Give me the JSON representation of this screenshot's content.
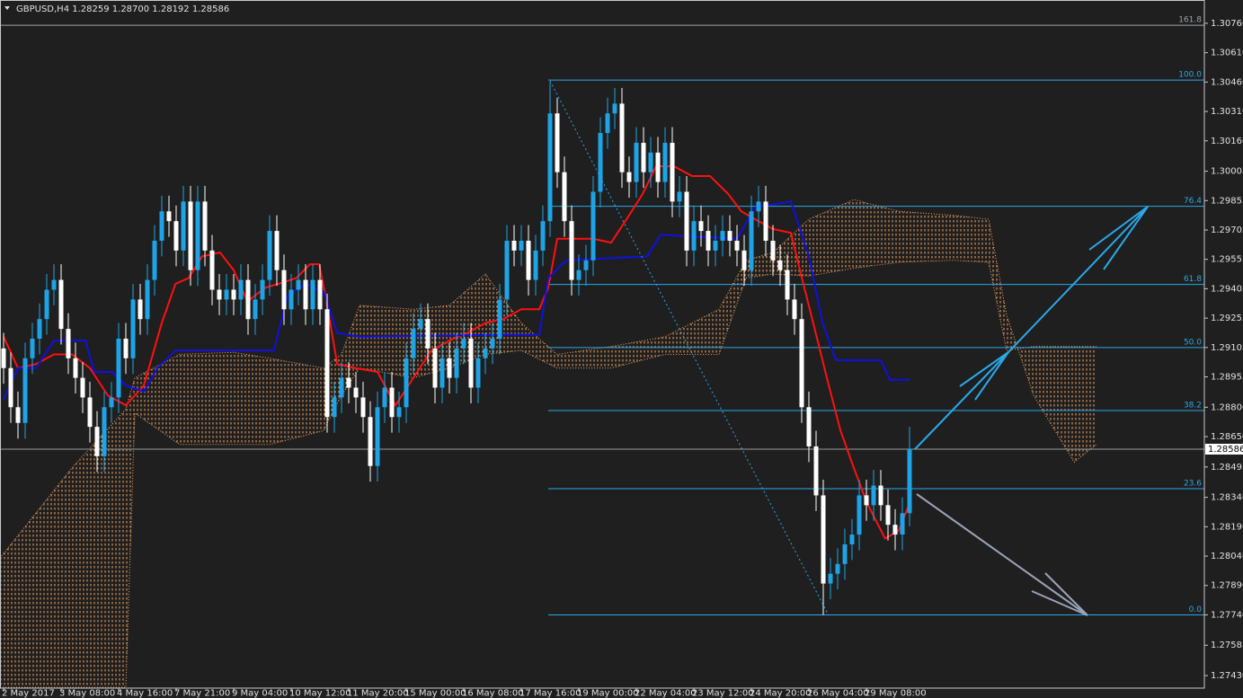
{
  "chart_data": {
    "type": "candlestick",
    "title": "GBPUSD,H4  1.28259 1.28700 1.28192 1.28586",
    "x": [
      0,
      1,
      2,
      3,
      4,
      5,
      6,
      7,
      8,
      9,
      10,
      11,
      12,
      13,
      14,
      15,
      16,
      17,
      18,
      19,
      20,
      21,
      22,
      23,
      24,
      25,
      26,
      27,
      28,
      29,
      30,
      31,
      32,
      33,
      34,
      35,
      36,
      37,
      38,
      39,
      40,
      41,
      42,
      43,
      44,
      45,
      46,
      47,
      48,
      49,
      50,
      51,
      52,
      53,
      54,
      55,
      56,
      57,
      58,
      59,
      60,
      61,
      62,
      63,
      64,
      65,
      66,
      67,
      68,
      69,
      70,
      71,
      72,
      73,
      74,
      75,
      76,
      77,
      78,
      79,
      80,
      81,
      82,
      83,
      84,
      85,
      86,
      87,
      88,
      89,
      90,
      91,
      92,
      93,
      94,
      95,
      96,
      97,
      98,
      99,
      100,
      101,
      102,
      103,
      104,
      105,
      106,
      107,
      108,
      109,
      110,
      111,
      112,
      113,
      114,
      115,
      116,
      117,
      118,
      119,
      120,
      121,
      122,
      123,
      124,
      125,
      126
    ],
    "open": [
      1.291,
      1.29,
      1.288,
      1.2872,
      1.2905,
      1.2915,
      1.2925,
      1.294,
      1.2945,
      1.292,
      1.2905,
      1.2895,
      1.2885,
      1.287,
      1.2855,
      1.288,
      1.2885,
      1.2915,
      1.2905,
      1.2935,
      1.2925,
      1.2945,
      1.2965,
      1.298,
      1.2975,
      1.296,
      1.2985,
      1.295,
      1.2985,
      1.296,
      1.294,
      1.2935,
      1.294,
      1.2935,
      1.2945,
      1.2925,
      1.2935,
      1.2945,
      1.297,
      1.295,
      1.293,
      1.294,
      1.2945,
      1.293,
      1.2945,
      1.293,
      1.2875,
      1.2885,
      1.2895,
      1.289,
      1.2885,
      1.2875,
      1.285,
      1.288,
      1.289,
      1.2875,
      1.288,
      1.2905,
      1.292,
      1.2925,
      1.291,
      1.289,
      1.2905,
      1.2895,
      1.291,
      1.2915,
      1.289,
      1.2905,
      1.291,
      1.2915,
      1.2935,
      1.2965,
      1.296,
      1.2965,
      1.2945,
      1.296,
      1.2975,
      1.303,
      1.3,
      1.2975,
      1.2945,
      1.295,
      1.2955,
      1.299,
      1.302,
      1.303,
      1.3035,
      1.3,
      1.2995,
      1.3015,
      1.3,
      1.301,
      1.2995,
      1.3015,
      1.2985,
      1.299,
      1.296,
      1.2975,
      1.297,
      1.296,
      1.2965,
      1.297,
      1.2965,
      1.296,
      1.295,
      1.298,
      1.2985,
      1.2965,
      1.2955,
      1.295,
      1.2935,
      1.2925,
      1.288,
      1.286,
      1.2835,
      1.279,
      1.2795,
      1.28,
      1.281,
      1.2815,
      1.2835,
      1.283,
      1.284,
      1.283,
      1.282,
      1.2815,
      1.28259
    ],
    "high": [
      1.2918,
      1.2908,
      1.2888,
      1.2913,
      1.2923,
      1.2933,
      1.2948,
      1.2953,
      1.2953,
      1.2928,
      1.2913,
      1.2903,
      1.2893,
      1.2878,
      1.2888,
      1.2893,
      1.2923,
      1.2923,
      1.2943,
      1.2943,
      1.2953,
      1.2973,
      1.2988,
      1.2988,
      1.2983,
      1.2993,
      1.2993,
      1.2993,
      1.2993,
      1.2968,
      1.2948,
      1.2948,
      1.2948,
      1.2953,
      1.2953,
      1.2943,
      1.2953,
      1.2978,
      1.2978,
      1.2958,
      1.2948,
      1.2953,
      1.2953,
      1.2953,
      1.2953,
      1.2938,
      1.2893,
      1.2903,
      1.2903,
      1.2898,
      1.2893,
      1.2883,
      1.2888,
      1.2898,
      1.2898,
      1.2888,
      1.2913,
      1.2928,
      1.2933,
      1.2933,
      1.2918,
      1.2913,
      1.2913,
      1.2918,
      1.2923,
      1.2923,
      1.2913,
      1.2918,
      1.2923,
      1.2943,
      1.2973,
      1.2973,
      1.2973,
      1.2973,
      1.2968,
      1.2983,
      1.3046,
      1.3038,
      1.3008,
      1.2983,
      1.2958,
      1.2963,
      1.2998,
      1.3028,
      1.3038,
      1.3043,
      1.3043,
      1.3008,
      1.3023,
      1.3023,
      1.3018,
      1.3018,
      1.3023,
      1.3023,
      1.2998,
      1.2998,
      1.2983,
      1.2983,
      1.2978,
      1.2973,
      1.2978,
      1.2978,
      1.2973,
      1.2968,
      1.2988,
      1.2993,
      1.2993,
      1.2973,
      1.2963,
      1.2958,
      1.2943,
      1.2933,
      1.2888,
      1.2868,
      1.2843,
      1.2803,
      1.2808,
      1.2818,
      1.2823,
      1.2843,
      1.2843,
      1.2848,
      1.2848,
      1.2838,
      1.2828,
      1.2834,
      1.287
    ],
    "low": [
      1.2892,
      1.2872,
      1.2864,
      1.2864,
      1.2897,
      1.2907,
      1.2917,
      1.2932,
      1.2912,
      1.2897,
      1.2887,
      1.2877,
      1.2862,
      1.2847,
      1.2847,
      1.2872,
      1.2877,
      1.2897,
      1.2897,
      1.2917,
      1.2917,
      1.2937,
      1.2957,
      1.2967,
      1.2952,
      1.2952,
      1.2942,
      1.2942,
      1.2952,
      1.2932,
      1.2927,
      1.2927,
      1.2927,
      1.2927,
      1.2917,
      1.2917,
      1.2927,
      1.2937,
      1.2942,
      1.2922,
      1.2922,
      1.2932,
      1.2922,
      1.2922,
      1.2922,
      1.2867,
      1.2867,
      1.2877,
      1.2882,
      1.2877,
      1.2867,
      1.2842,
      1.2842,
      1.2872,
      1.2867,
      1.2867,
      1.2872,
      1.2897,
      1.2912,
      1.2902,
      1.2882,
      1.2882,
      1.2887,
      1.2887,
      1.2902,
      1.2882,
      1.2882,
      1.2897,
      1.2902,
      1.2907,
      1.2927,
      1.2952,
      1.2952,
      1.2937,
      1.2937,
      1.2952,
      1.2967,
      1.2992,
      1.2967,
      1.2937,
      1.2937,
      1.2942,
      1.2947,
      1.2982,
      1.3012,
      1.3022,
      1.2992,
      1.2987,
      1.2987,
      1.2992,
      1.2992,
      1.2987,
      1.2987,
      1.2977,
      1.2977,
      1.2952,
      1.2952,
      1.2962,
      1.2952,
      1.2952,
      1.2957,
      1.2957,
      1.2952,
      1.2942,
      1.2942,
      1.2972,
      1.2957,
      1.2947,
      1.2942,
      1.2927,
      1.2917,
      1.2872,
      1.2852,
      1.2827,
      1.2774,
      1.2782,
      1.2787,
      1.2792,
      1.2802,
      1.2807,
      1.2822,
      1.2822,
      1.2822,
      1.2812,
      1.2807,
      1.2807,
      1.28192
    ],
    "close": [
      1.29,
      1.288,
      1.2872,
      1.2905,
      1.2915,
      1.2925,
      1.294,
      1.2945,
      1.292,
      1.2905,
      1.2895,
      1.2885,
      1.287,
      1.2855,
      1.288,
      1.2885,
      1.2915,
      1.2905,
      1.2935,
      1.2925,
      1.2945,
      1.2965,
      1.298,
      1.2975,
      1.296,
      1.2985,
      1.295,
      1.2985,
      1.296,
      1.294,
      1.2935,
      1.294,
      1.2935,
      1.2945,
      1.2925,
      1.2935,
      1.2945,
      1.297,
      1.295,
      1.293,
      1.294,
      1.2945,
      1.293,
      1.2945,
      1.293,
      1.2875,
      1.2885,
      1.2895,
      1.289,
      1.2885,
      1.2875,
      1.285,
      1.288,
      1.289,
      1.2875,
      1.288,
      1.2905,
      1.292,
      1.2925,
      1.291,
      1.289,
      1.2905,
      1.2895,
      1.291,
      1.2915,
      1.289,
      1.2905,
      1.291,
      1.2915,
      1.2935,
      1.2965,
      1.296,
      1.2965,
      1.2945,
      1.296,
      1.2975,
      1.303,
      1.3,
      1.2975,
      1.2945,
      1.295,
      1.2955,
      1.299,
      1.302,
      1.303,
      1.3035,
      1.3,
      1.2995,
      1.3015,
      1.3,
      1.301,
      1.2995,
      1.3015,
      1.2985,
      1.299,
      1.296,
      1.2975,
      1.297,
      1.296,
      1.2965,
      1.297,
      1.2965,
      1.296,
      1.295,
      1.298,
      1.2985,
      1.2965,
      1.2955,
      1.295,
      1.2935,
      1.2925,
      1.288,
      1.286,
      1.2835,
      1.279,
      1.2795,
      1.28,
      1.281,
      1.2815,
      1.2835,
      1.283,
      1.284,
      1.283,
      1.282,
      1.2815,
      1.28259,
      1.28586
    ],
    "up_color": "#1ea4e6",
    "down_color": "#ffffff",
    "lines": [
      {
        "color": "#ff1010",
        "x": [
          0,
          2,
          4.5,
          7,
          9.5,
          12,
          14.5,
          17,
          19.5,
          22,
          23.9,
          25.75,
          27.6,
          30.1,
          32,
          33.9,
          36.4,
          38.25,
          40.75,
          42.6,
          43.9,
          45.1,
          46.4,
          48.9,
          52,
          54.5,
          57,
          59.5,
          62,
          64.5,
          67,
          69.5,
          72,
          74.5,
          75.75,
          77,
          82,
          84.5,
          87,
          88.9,
          90.75,
          93.25,
          95.75,
          98.25,
          100.75,
          102.6,
          104.5,
          107,
          109.5,
          110.75,
          112.6,
          114.5,
          116.4,
          118.25,
          120.1,
          122.6,
          124.5,
          126
        ],
        "values": [
          1.2916,
          1.29,
          1.2902,
          1.2907,
          1.2907,
          1.29,
          1.2886,
          1.2881,
          1.2891,
          1.2923,
          1.2943,
          1.2946,
          1.2957,
          1.2959,
          1.295,
          1.2934,
          1.2941,
          1.2943,
          1.2946,
          1.2953,
          1.2953,
          1.293,
          1.2902,
          1.29,
          1.2898,
          1.2881,
          1.2895,
          1.2909,
          1.2914,
          1.2918,
          1.2923,
          1.2925,
          1.293,
          1.293,
          1.2941,
          1.2966,
          1.2966,
          1.2964,
          1.2978,
          1.2989,
          1.3003,
          1.3003,
          1.2998,
          1.2998,
          1.2989,
          1.298,
          1.2976,
          1.2971,
          1.2969,
          1.295,
          1.2923,
          1.2895,
          1.2868,
          1.2849,
          1.2831,
          1.2813,
          1.2817,
          1.2831
        ]
      },
      {
        "color": "#1010e0",
        "x": [
          0,
          2,
          4.5,
          7,
          11.4,
          12.6,
          15.1,
          17,
          19.5,
          21.4,
          23.9,
          37.6,
          39.5,
          42,
          44.5,
          46.4,
          49.5,
          69.5,
          74.5,
          75.75,
          78.25,
          89.5,
          91.4,
          102,
          104.5,
          109.5,
          112,
          113.9,
          115.75,
          122,
          123.25,
          126
        ],
        "values": [
          1.2884,
          1.29,
          1.29,
          1.2914,
          1.2914,
          1.2898,
          1.2898,
          1.2891,
          1.2888,
          1.29,
          1.2909,
          1.2909,
          1.2937,
          1.2943,
          1.2939,
          1.2918,
          1.2916,
          1.2917,
          1.2917,
          1.2946,
          1.2955,
          1.2957,
          1.2968,
          1.2966,
          1.2982,
          1.2985,
          1.2957,
          1.2923,
          1.2904,
          1.2904,
          1.2894,
          1.2894
        ]
      }
    ],
    "cloud": {
      "color": "#f4a460",
      "x": [
        -0.5,
        9.5,
        17,
        18.25,
        24.5,
        32,
        37,
        44.5,
        47,
        49.5,
        57,
        62,
        67,
        72,
        77,
        84.5,
        92,
        99.5,
        103.25,
        107,
        112,
        118.25,
        124.5,
        132,
        137,
        139.5,
        143.25,
        148.9,
        152
      ],
      "span_a": [
        1.2803,
        1.2849,
        1.2879,
        1.2895,
        1.2907,
        1.2908,
        1.2905,
        1.29,
        1.2907,
        1.2932,
        1.293,
        1.2932,
        1.2948,
        1.2923,
        1.2907,
        1.2911,
        1.2916,
        1.293,
        1.2955,
        1.2959,
        1.2976,
        1.2986,
        1.298,
        1.2978,
        1.2976,
        1.2927,
        1.2886,
        1.2852,
        1.2861
      ],
      "span_b": [
        1.2737,
        1.2737,
        1.2737,
        1.2877,
        1.2861,
        1.2861,
        1.2861,
        1.2868,
        1.2886,
        1.29,
        1.2895,
        1.29,
        1.2907,
        1.2909,
        1.29,
        1.29,
        1.2907,
        1.2907,
        1.2946,
        1.2948,
        1.2947,
        1.2951,
        1.2954,
        1.2955,
        1.2954,
        1.2909,
        1.2911,
        1.2911,
        1.2911
      ]
    },
    "fib": {
      "color": "#2aa8e8",
      "start_x": 75.75,
      "levels": [
        {
          "value": 1.3075,
          "label": "161.8",
          "color": "#9aa4ad",
          "full_width": true
        },
        {
          "value": 1.3047,
          "label": "100.0"
        },
        {
          "value": 1.29826,
          "label": "76.4"
        },
        {
          "value": 1.29427,
          "label": "61.8"
        },
        {
          "value": 1.29105,
          "label": "50.0"
        },
        {
          "value": 1.28783,
          "label": "38.2"
        },
        {
          "value": 1.28384,
          "label": "23.6"
        },
        {
          "value": 1.2774,
          "label": "0.0"
        }
      ]
    },
    "last_price": {
      "value": 1.28586,
      "label": "1.28586",
      "color": "#9a9a9a"
    },
    "xlim": [
      -0.5,
      167
    ],
    "ylim": [
      1.27366,
      1.30879
    ],
    "xticks": [
      {
        "value": 0,
        "label": "2 May 2017"
      },
      {
        "value": 8,
        "label": "3 May 08:00"
      },
      {
        "value": 16,
        "label": "4 May 16:00"
      },
      {
        "value": 24,
        "label": "7 May 21:00"
      },
      {
        "value": 32,
        "label": "9 May 04:00"
      },
      {
        "value": 40,
        "label": "10 May 12:00"
      },
      {
        "value": 48,
        "label": "11 May 20:00"
      },
      {
        "value": 56,
        "label": "15 May 00:00"
      },
      {
        "value": 64,
        "label": "16 May 08:00"
      },
      {
        "value": 72,
        "label": "17 May 16:00"
      },
      {
        "value": 80,
        "label": "19 May 00:00"
      },
      {
        "value": 88,
        "label": "22 May 04:00"
      },
      {
        "value": 96,
        "label": "23 May 12:00"
      },
      {
        "value": 104,
        "label": "24 May 20:00"
      },
      {
        "value": 112,
        "label": "26 May 04:00"
      },
      {
        "value": 120,
        "label": "29 May 08:00"
      }
    ],
    "yticks": [
      {
        "value": 1.2743,
        "label": "1.27430"
      },
      {
        "value": 1.27585,
        "label": "1.27585"
      },
      {
        "value": 1.2774,
        "label": "1.27740"
      },
      {
        "value": 1.2789,
        "label": "1.27890"
      },
      {
        "value": 1.2804,
        "label": "1.28040"
      },
      {
        "value": 1.2819,
        "label": "1.28190"
      },
      {
        "value": 1.2834,
        "label": "1.28340"
      },
      {
        "value": 1.28495,
        "label": "1.28495"
      },
      {
        "value": 1.2865,
        "label": "1.28650"
      },
      {
        "value": 1.288,
        "label": "1.28800"
      },
      {
        "value": 1.28955,
        "label": "1.28955"
      },
      {
        "value": 1.29105,
        "label": "1.29105"
      },
      {
        "value": 1.29255,
        "label": "1.29255"
      },
      {
        "value": 1.29405,
        "label": "1.29405"
      },
      {
        "value": 1.29555,
        "label": "1.29555"
      },
      {
        "value": 1.29705,
        "label": "1.29705"
      },
      {
        "value": 1.29855,
        "label": "1.29855"
      },
      {
        "value": 1.30005,
        "label": "1.30005"
      },
      {
        "value": 1.3016,
        "label": "1.30160"
      },
      {
        "value": 1.3031,
        "label": "1.30310"
      },
      {
        "value": 1.3046,
        "label": "1.30460"
      },
      {
        "value": 1.3061,
        "label": "1.30610"
      },
      {
        "value": 1.3076,
        "label": "1.30760"
      }
    ],
    "grid": false
  }
}
